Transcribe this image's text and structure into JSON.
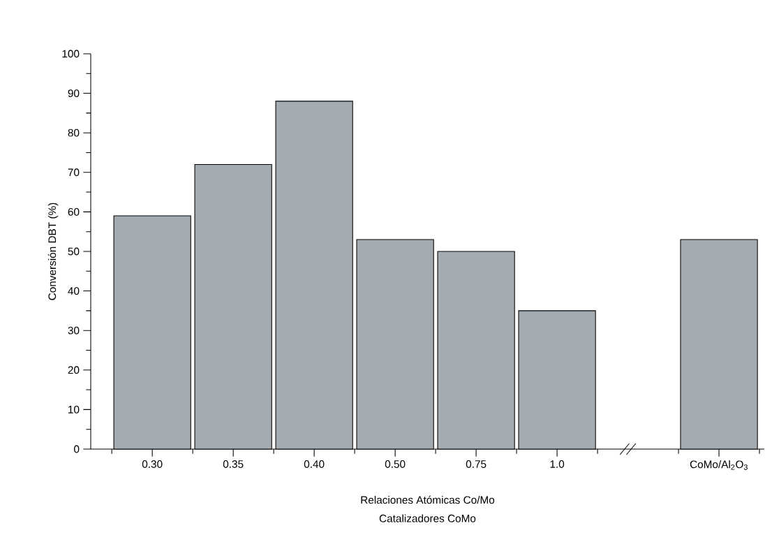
{
  "chart_data": {
    "type": "bar",
    "categories": [
      "0.30",
      "0.35",
      "0.40",
      "0.50",
      "0.75",
      "1.0",
      null,
      "CoMo/Al$_{2}$O$_{3}$"
    ],
    "values": [
      59,
      72,
      88,
      53,
      50,
      35,
      null,
      53
    ],
    "color": "#a4acb1",
    "ylim": [
      0,
      100
    ],
    "yticks": [
      0,
      10,
      20,
      30,
      40,
      50,
      60,
      70,
      80,
      90,
      100
    ],
    "xlabel": "Relaciones Atómicas Co/Mo",
    "ylabel": "Conversión DBT (%)",
    "annotations": [
      "Catalizadores CoMo"
    ]
  }
}
